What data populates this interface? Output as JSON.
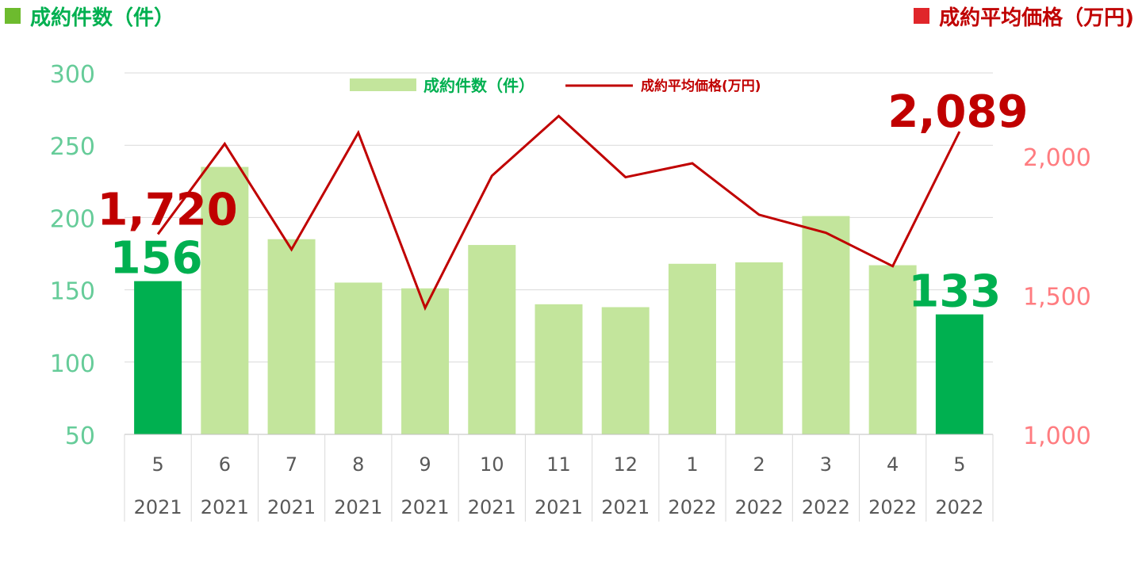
{
  "header": {
    "left_title": "成約件数（件）",
    "left_color": "#6DBB2E",
    "right_title": "成約平均価格（万円)",
    "right_color": "#E0262A"
  },
  "legend": {
    "bars_label": "成約件数（件）",
    "line_label": "成約平均価格(万円)"
  },
  "colors": {
    "bar_light": "#C3E59C",
    "bar_highlight": "#00B050",
    "line": "#C00000",
    "left_axis_text": "#66CC99",
    "right_axis_text": "#FF7C80",
    "category_text": "#595959"
  },
  "chart_data": {
    "type": "bar",
    "categories": [
      [
        "5",
        "2021"
      ],
      [
        "6",
        "2021"
      ],
      [
        "7",
        "2021"
      ],
      [
        "8",
        "2021"
      ],
      [
        "9",
        "2021"
      ],
      [
        "10",
        "2021"
      ],
      [
        "11",
        "2021"
      ],
      [
        "12",
        "2021"
      ],
      [
        "1",
        "2022"
      ],
      [
        "2",
        "2022"
      ],
      [
        "3",
        "2022"
      ],
      [
        "4",
        "2022"
      ],
      [
        "5",
        "2022"
      ]
    ],
    "series": [
      {
        "name": "成約件数（件）",
        "type": "bar",
        "axis": "left",
        "values": [
          156,
          235,
          185,
          155,
          151,
          181,
          140,
          138,
          168,
          169,
          201,
          167,
          133
        ],
        "highlight_indices": [
          0,
          12
        ]
      },
      {
        "name": "成約平均価格(万円)",
        "type": "line",
        "axis": "right",
        "values": [
          1720,
          2045,
          1665,
          2085,
          1455,
          1930,
          2145,
          1925,
          1975,
          1790,
          1725,
          1605,
          2089
        ]
      }
    ],
    "left_axis": {
      "min": 50,
      "max": 300,
      "ticks": [
        "50",
        "100",
        "150",
        "200",
        "250",
        "300"
      ]
    },
    "right_axis": {
      "min": 1000,
      "max": 2300,
      "ticks": [
        "1,000",
        "1,500",
        "2,000"
      ]
    },
    "annotations": [
      {
        "series": 0,
        "index": 0,
        "text": "156"
      },
      {
        "series": 0,
        "index": 12,
        "text": "133"
      },
      {
        "series": 1,
        "index": 0,
        "text": "1,720"
      },
      {
        "series": 1,
        "index": 12,
        "text": "2,089"
      }
    ],
    "grid": true,
    "legend_position": "top-center"
  }
}
